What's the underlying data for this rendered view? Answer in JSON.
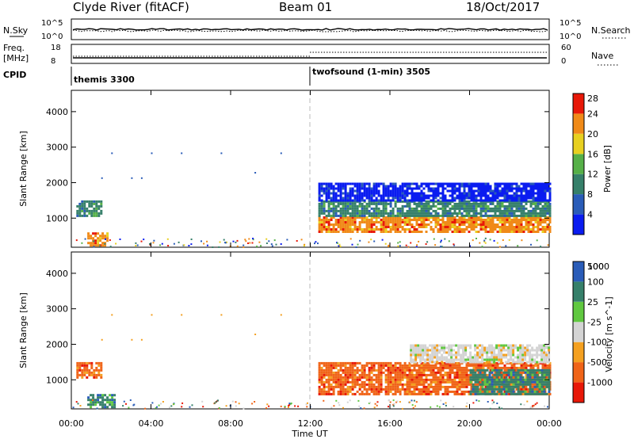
{
  "header": {
    "title": "Clyde River (fitACF)",
    "beam": "Beam 01",
    "date": "18/Oct/2017"
  },
  "summary_panel": {
    "nsky_label": "N.Sky",
    "nsky_ticks": [
      "10^5",
      "10^0"
    ],
    "nsearch_label": "N.Search",
    "nsearch_ticks": [
      "10^5",
      "10^0"
    ],
    "freq_label": "Freq.",
    "freq_unit": "[MHz]",
    "freq_ticks": [
      "18",
      "8"
    ],
    "nave_label": "Nave",
    "nave_ticks": [
      "60",
      "0"
    ],
    "cpid_label": "CPID",
    "cpid_modes": [
      {
        "name": "themis 3300",
        "start_hour": 0
      },
      {
        "name": "twofsound (1-min) 3505",
        "start_hour": 12
      }
    ]
  },
  "chart_data": [
    {
      "type": "heatmap",
      "title": "",
      "parameter": "Power",
      "colorbar_label": "Power [dB]",
      "colorbar_ticks": [
        "4",
        "8",
        "12",
        "16",
        "20",
        "24",
        "28"
      ],
      "colorbar_colors": [
        "#0a1cf0",
        "#2a5cb8",
        "#36806a",
        "#56b048",
        "#e8d020",
        "#f08a18",
        "#e81808"
      ],
      "xlabel": "",
      "ylabel": "Slant Range [km]",
      "yticks": [
        "1000",
        "2000",
        "3000",
        "4000"
      ],
      "ylim": [
        180,
        4600
      ],
      "xlim_hours": [
        0,
        24
      ],
      "regions": [
        {
          "t0": 0.25,
          "t1": 1.5,
          "r0": 1050,
          "r1": 1500,
          "value_db": 12
        },
        {
          "t0": 0.8,
          "t1": 1.8,
          "r0": 200,
          "r1": 600,
          "value_db": 24
        },
        {
          "t0": 12.4,
          "t1": 24,
          "r0": 600,
          "r1": 1050,
          "value_db": 26
        },
        {
          "t0": 12.4,
          "t1": 24,
          "r0": 1050,
          "r1": 1500,
          "value_db": 12
        },
        {
          "t0": 12.4,
          "t1": 24,
          "r0": 1500,
          "r1": 2000,
          "value_db": 6
        }
      ]
    },
    {
      "type": "heatmap",
      "title": "",
      "parameter": "Velocity",
      "colorbar_label": "Velocity [m s^-1]",
      "colorbar_ticks": [
        "-1000",
        "-500",
        "-100",
        "-25",
        "25",
        "100",
        "500",
        "1000"
      ],
      "colorbar_colors": [
        "#e81808",
        "#f06418",
        "#f4a020",
        "#d4d4d4",
        "#60c840",
        "#36806a",
        "#2a5cb8"
      ],
      "xlabel": "Time UT",
      "ylabel": "Slant Range [km]",
      "yticks": [
        "1000",
        "2000",
        "3000",
        "4000"
      ],
      "xticks": [
        "00:00",
        "04:00",
        "08:00",
        "12:00",
        "16:00",
        "20:00",
        "00:00"
      ],
      "ylim": [
        180,
        4600
      ],
      "xlim_hours": [
        0,
        24
      ],
      "regions": [
        {
          "t0": 0.25,
          "t1": 1.5,
          "r0": 1050,
          "r1": 1500,
          "value_ms": -300
        },
        {
          "t0": 0.8,
          "t1": 2.2,
          "r0": 200,
          "r1": 600,
          "value_ms": 150
        },
        {
          "t0": 12.4,
          "t1": 24,
          "r0": 600,
          "r1": 1500,
          "value_ms": -400
        },
        {
          "t0": 20,
          "t1": 24,
          "r0": 600,
          "r1": 1300,
          "value_ms": 300
        },
        {
          "t0": 17,
          "t1": 24,
          "r0": 1500,
          "r1": 2000,
          "value_ms": 0
        }
      ]
    }
  ]
}
